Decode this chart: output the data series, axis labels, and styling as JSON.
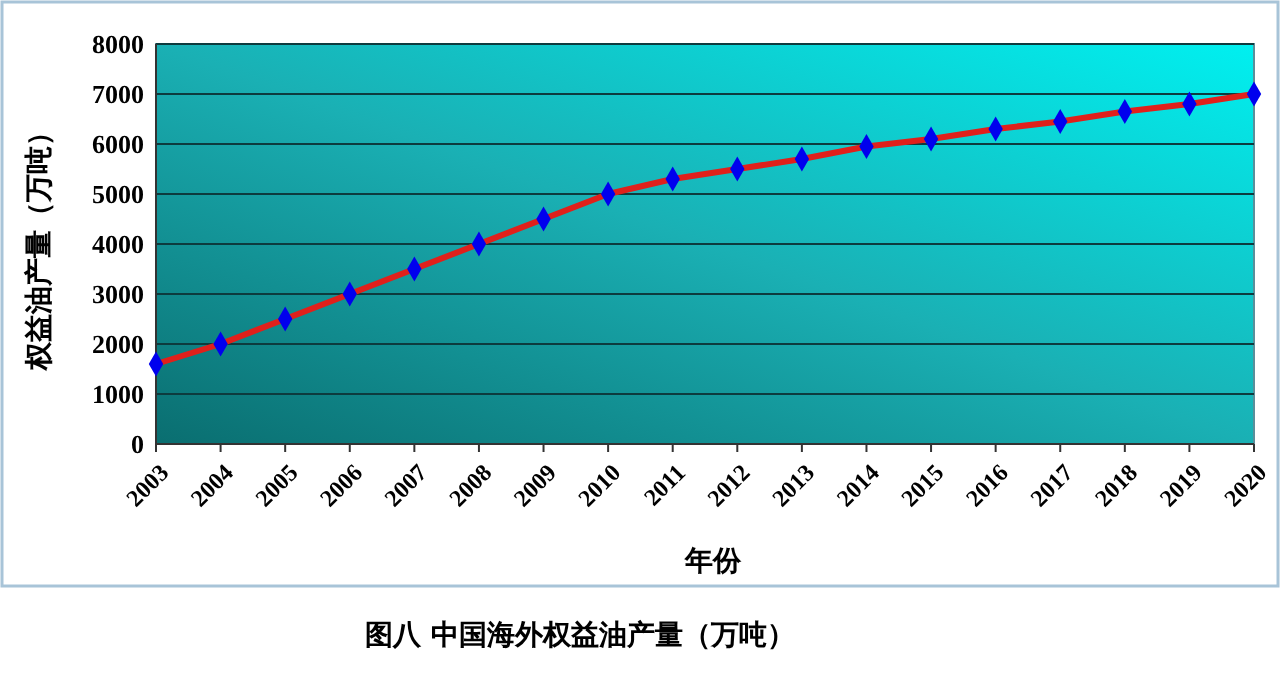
{
  "chart_data": {
    "type": "line",
    "title": "图八  中国海外权益油产量（万吨）",
    "xlabel": "年份",
    "ylabel": "权益油产量（万吨）",
    "categories": [
      "2003",
      "2004",
      "2005",
      "2006",
      "2007",
      "2008",
      "2009",
      "2010",
      "2011",
      "2012",
      "2013",
      "2014",
      "2015",
      "2016",
      "2017",
      "2018",
      "2019",
      "2020"
    ],
    "series": [
      {
        "color": "#e0201b",
        "values": [
          1600,
          2000,
          2500,
          3000,
          3500,
          4000,
          4500,
          5000,
          5300,
          5500,
          5700,
          5950,
          6100,
          6300,
          6450,
          6650,
          6800,
          7000
        ]
      }
    ],
    "ylim": [
      0,
      8000
    ],
    "yticks": [
      0,
      1000,
      2000,
      3000,
      4000,
      5000,
      6000,
      7000,
      8000
    ],
    "grid": "y",
    "marker": "diamond",
    "line_style": "solid"
  }
}
